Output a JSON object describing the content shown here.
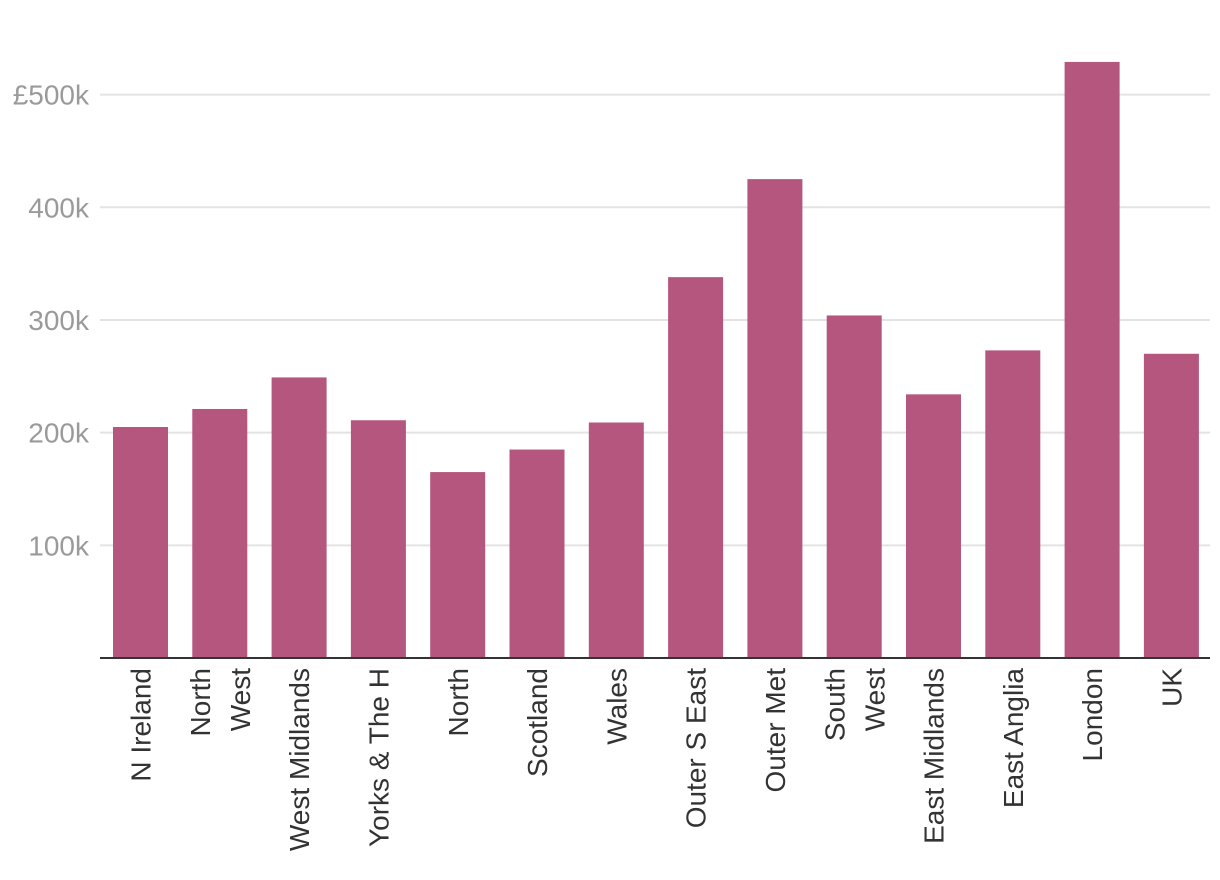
{
  "chart_data": {
    "type": "bar",
    "title": "",
    "xlabel": "",
    "ylabel": "",
    "categories": [
      "N Ireland",
      "North West",
      "West Midlands",
      "Yorks & The H",
      "North",
      "Scotland",
      "Wales",
      "Outer S East",
      "Outer Met",
      "South West",
      "East Midlands",
      "East Anglia",
      "London",
      "UK"
    ],
    "category_lines": [
      [
        "N Ireland"
      ],
      [
        "North",
        "West"
      ],
      [
        "West Midlands"
      ],
      [
        "Yorks & The H"
      ],
      [
        "North"
      ],
      [
        "Scotland"
      ],
      [
        "Wales"
      ],
      [
        "Outer S East"
      ],
      [
        "Outer Met"
      ],
      [
        "South",
        "West"
      ],
      [
        "East Midlands"
      ],
      [
        "East Anglia"
      ],
      [
        "London"
      ],
      [
        "UK"
      ]
    ],
    "values": [
      205000,
      221000,
      249000,
      211000,
      165000,
      185000,
      209000,
      338000,
      425000,
      304000,
      234000,
      273000,
      529000,
      270000
    ],
    "ylim": [
      0,
      560000
    ],
    "yticks": [
      100000,
      200000,
      300000,
      400000,
      500000
    ],
    "ytick_labels": [
      "100k",
      "200k",
      "300k",
      "400k",
      "£500k"
    ],
    "grid": true,
    "bar_color": "#b5567e"
  }
}
